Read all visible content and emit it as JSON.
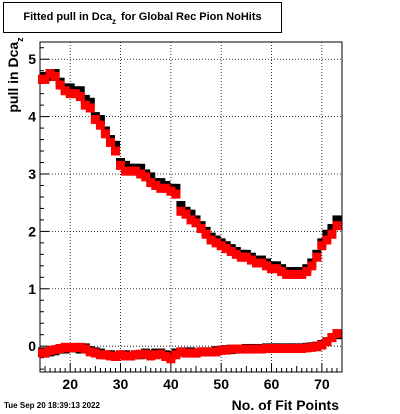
{
  "title": {
    "prefix": "Fitted pull in Dca",
    "subscript": "z",
    "suffix": " for Global Rec Pion NoHits"
  },
  "timestamp": "Tue Sep 20 18:39:13 2022",
  "chart_data": {
    "type": "scatter",
    "xlabel": "No. of Fit Points",
    "ylabel_main": "pull in Dca",
    "ylabel_subscript": "z",
    "xlim": [
      14,
      74
    ],
    "ylim": [
      -0.45,
      5.3
    ],
    "x_ticks": [
      20,
      30,
      40,
      50,
      60,
      70
    ],
    "y_ticks": [
      0,
      1,
      2,
      3,
      4,
      5
    ],
    "grid": true,
    "colors": {
      "black_series": "#000000",
      "red_series": "#ff0000"
    },
    "series": [
      {
        "color": "#000000",
        "points": [
          [
            14.5,
            4.65
          ],
          [
            15,
            4.7
          ],
          [
            16,
            4.7
          ],
          [
            17,
            4.75
          ],
          [
            18,
            4.6
          ],
          [
            19,
            4.5
          ],
          [
            20,
            4.5
          ],
          [
            21,
            4.45
          ],
          [
            22,
            4.45
          ],
          [
            23,
            4.3
          ],
          [
            24,
            4.25
          ],
          [
            25,
            4.0
          ],
          [
            26,
            3.95
          ],
          [
            27,
            3.75
          ],
          [
            28,
            3.6
          ],
          [
            29,
            3.5
          ],
          [
            30,
            3.2
          ],
          [
            31,
            3.15
          ],
          [
            32,
            3.1
          ],
          [
            33,
            3.1
          ],
          [
            34,
            3.1
          ],
          [
            35,
            3.0
          ],
          [
            36,
            2.95
          ],
          [
            37,
            2.85
          ],
          [
            38,
            2.85
          ],
          [
            39,
            2.8
          ],
          [
            40,
            2.75
          ],
          [
            41,
            2.75
          ],
          [
            42,
            2.45
          ],
          [
            43,
            2.35
          ],
          [
            44,
            2.3
          ],
          [
            45,
            2.2
          ],
          [
            46,
            2.1
          ],
          [
            47,
            2.0
          ],
          [
            48,
            1.9
          ],
          [
            49,
            1.85
          ],
          [
            50,
            1.8
          ],
          [
            51,
            1.75
          ],
          [
            52,
            1.7
          ],
          [
            53,
            1.65
          ],
          [
            54,
            1.6
          ],
          [
            55,
            1.6
          ],
          [
            56,
            1.55
          ],
          [
            57,
            1.5
          ],
          [
            58,
            1.5
          ],
          [
            59,
            1.45
          ],
          [
            60,
            1.4
          ],
          [
            61,
            1.4
          ],
          [
            62,
            1.35
          ],
          [
            63,
            1.3
          ],
          [
            64,
            1.3
          ],
          [
            65,
            1.3
          ],
          [
            66,
            1.3
          ],
          [
            67,
            1.35
          ],
          [
            68,
            1.45
          ],
          [
            69,
            1.6
          ],
          [
            70,
            1.8
          ],
          [
            71,
            1.95
          ],
          [
            72,
            2.05
          ],
          [
            73,
            2.2
          ]
        ]
      },
      {
        "color": "#ff0000",
        "points": [
          [
            14.5,
            4.65
          ],
          [
            15,
            4.65
          ],
          [
            16,
            4.75
          ],
          [
            17,
            4.7
          ],
          [
            18,
            4.55
          ],
          [
            19,
            4.45
          ],
          [
            20,
            4.4
          ],
          [
            21,
            4.4
          ],
          [
            22,
            4.35
          ],
          [
            23,
            4.2
          ],
          [
            24,
            4.15
          ],
          [
            25,
            3.95
          ],
          [
            26,
            3.85
          ],
          [
            27,
            3.7
          ],
          [
            28,
            3.55
          ],
          [
            29,
            3.4
          ],
          [
            30,
            3.15
          ],
          [
            31,
            3.05
          ],
          [
            32,
            3.05
          ],
          [
            33,
            3.05
          ],
          [
            34,
            3.0
          ],
          [
            35,
            2.95
          ],
          [
            36,
            2.85
          ],
          [
            37,
            2.8
          ],
          [
            38,
            2.75
          ],
          [
            39,
            2.75
          ],
          [
            40,
            2.7
          ],
          [
            41,
            2.65
          ],
          [
            42,
            2.35
          ],
          [
            43,
            2.3
          ],
          [
            44,
            2.2
          ],
          [
            45,
            2.15
          ],
          [
            46,
            2.05
          ],
          [
            47,
            1.95
          ],
          [
            48,
            1.85
          ],
          [
            49,
            1.8
          ],
          [
            50,
            1.75
          ],
          [
            51,
            1.7
          ],
          [
            52,
            1.65
          ],
          [
            53,
            1.6
          ],
          [
            54,
            1.55
          ],
          [
            55,
            1.55
          ],
          [
            56,
            1.5
          ],
          [
            57,
            1.45
          ],
          [
            58,
            1.45
          ],
          [
            59,
            1.4
          ],
          [
            60,
            1.35
          ],
          [
            61,
            1.35
          ],
          [
            62,
            1.3
          ],
          [
            63,
            1.25
          ],
          [
            64,
            1.25
          ],
          [
            65,
            1.25
          ],
          [
            66,
            1.25
          ],
          [
            67,
            1.3
          ],
          [
            68,
            1.4
          ],
          [
            69,
            1.55
          ],
          [
            70,
            1.75
          ],
          [
            71,
            1.85
          ],
          [
            72,
            1.95
          ],
          [
            73,
            2.1
          ]
        ]
      },
      {
        "color": "#000000",
        "points": [
          [
            14.5,
            -0.1
          ],
          [
            15,
            -0.12
          ],
          [
            16,
            -0.1
          ],
          [
            17,
            -0.08
          ],
          [
            18,
            -0.05
          ],
          [
            19,
            -0.05
          ],
          [
            20,
            -0.03
          ],
          [
            21,
            -0.03
          ],
          [
            22,
            -0.05
          ],
          [
            23,
            -0.03
          ],
          [
            24,
            -0.08
          ],
          [
            25,
            -0.1
          ],
          [
            26,
            -0.12
          ],
          [
            27,
            -0.15
          ],
          [
            28,
            -0.15
          ],
          [
            29,
            -0.17
          ],
          [
            30,
            -0.15
          ],
          [
            31,
            -0.15
          ],
          [
            32,
            -0.17
          ],
          [
            33,
            -0.15
          ],
          [
            34,
            -0.15
          ],
          [
            35,
            -0.12
          ],
          [
            36,
            -0.15
          ],
          [
            37,
            -0.12
          ],
          [
            38,
            -0.12
          ],
          [
            39,
            -0.15
          ],
          [
            40,
            -0.17
          ],
          [
            41,
            -0.12
          ],
          [
            42,
            -0.1
          ],
          [
            43,
            -0.1
          ],
          [
            44,
            -0.1
          ],
          [
            45,
            -0.12
          ],
          [
            46,
            -0.1
          ],
          [
            47,
            -0.1
          ],
          [
            48,
            -0.1
          ],
          [
            49,
            -0.08
          ],
          [
            50,
            -0.07
          ],
          [
            51,
            -0.06
          ],
          [
            52,
            -0.06
          ],
          [
            53,
            -0.05
          ],
          [
            54,
            -0.05
          ],
          [
            55,
            -0.04
          ],
          [
            56,
            -0.04
          ],
          [
            57,
            -0.04
          ],
          [
            58,
            -0.04
          ],
          [
            59,
            -0.03
          ],
          [
            60,
            -0.03
          ],
          [
            61,
            -0.03
          ],
          [
            62,
            -0.03
          ],
          [
            63,
            -0.03
          ],
          [
            64,
            -0.03
          ],
          [
            65,
            -0.03
          ],
          [
            66,
            -0.03
          ],
          [
            67,
            -0.02
          ],
          [
            68,
            -0.01
          ],
          [
            69,
            0.0
          ],
          [
            70,
            0.03
          ],
          [
            71,
            0.08
          ],
          [
            72,
            0.15
          ],
          [
            73,
            0.2
          ]
        ]
      },
      {
        "color": "#ff0000",
        "points": [
          [
            14.5,
            -0.12
          ],
          [
            15,
            -0.12
          ],
          [
            16,
            -0.08
          ],
          [
            17,
            -0.06
          ],
          [
            18,
            -0.04
          ],
          [
            19,
            -0.02
          ],
          [
            20,
            -0.03
          ],
          [
            21,
            -0.02
          ],
          [
            22,
            -0.02
          ],
          [
            23,
            -0.05
          ],
          [
            24,
            -0.1
          ],
          [
            25,
            -0.12
          ],
          [
            26,
            -0.15
          ],
          [
            27,
            -0.15
          ],
          [
            28,
            -0.17
          ],
          [
            29,
            -0.18
          ],
          [
            30,
            -0.15
          ],
          [
            31,
            -0.17
          ],
          [
            32,
            -0.17
          ],
          [
            33,
            -0.15
          ],
          [
            34,
            -0.14
          ],
          [
            35,
            -0.14
          ],
          [
            36,
            -0.17
          ],
          [
            37,
            -0.15
          ],
          [
            38,
            -0.14
          ],
          [
            39,
            -0.18
          ],
          [
            40,
            -0.22
          ],
          [
            41,
            -0.15
          ],
          [
            42,
            -0.1
          ],
          [
            43,
            -0.12
          ],
          [
            44,
            -0.12
          ],
          [
            45,
            -0.12
          ],
          [
            46,
            -0.1
          ],
          [
            47,
            -0.1
          ],
          [
            48,
            -0.1
          ],
          [
            49,
            -0.1
          ],
          [
            50,
            -0.07
          ],
          [
            51,
            -0.07
          ],
          [
            52,
            -0.05
          ],
          [
            53,
            -0.05
          ],
          [
            54,
            -0.05
          ],
          [
            55,
            -0.05
          ],
          [
            56,
            -0.05
          ],
          [
            57,
            -0.05
          ],
          [
            58,
            -0.05
          ],
          [
            59,
            -0.04
          ],
          [
            60,
            -0.04
          ],
          [
            61,
            -0.04
          ],
          [
            62,
            -0.04
          ],
          [
            63,
            -0.04
          ],
          [
            64,
            -0.04
          ],
          [
            65,
            -0.04
          ],
          [
            66,
            -0.04
          ],
          [
            67,
            -0.03
          ],
          [
            68,
            -0.02
          ],
          [
            69,
            -0.01
          ],
          [
            70,
            0.02
          ],
          [
            71,
            0.08
          ],
          [
            72,
            0.15
          ],
          [
            73,
            0.22
          ]
        ]
      }
    ]
  }
}
